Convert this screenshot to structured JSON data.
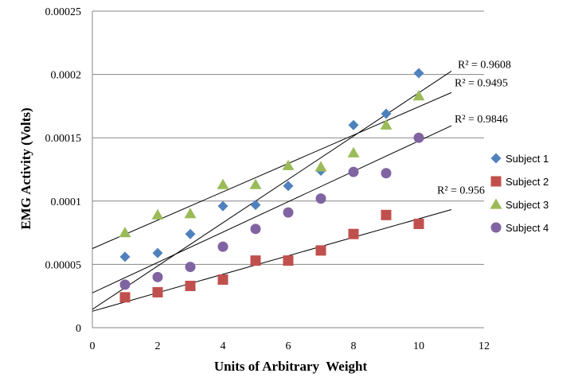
{
  "chart_data": {
    "type": "scatter",
    "title": "",
    "xlabel": "Units of Arbitrary  Weight",
    "ylabel": "EMG Activity (Volts)",
    "xlim": [
      0,
      12
    ],
    "ylim": [
      0,
      0.00025
    ],
    "x_ticks": [
      "0",
      "2",
      "4",
      "6",
      "8",
      "10",
      "12"
    ],
    "y_ticks": [
      "0",
      "0.00005",
      "0.0001",
      "0.00015",
      "0.0002",
      "0.00025"
    ],
    "grid": "horizontal",
    "legend_position": "right",
    "series": [
      {
        "name": "Subject 1",
        "marker": "diamond",
        "color": "#4F81BD",
        "x": [
          1,
          2,
          3,
          4,
          5,
          6,
          7,
          8,
          9,
          10
        ],
        "y": [
          5.6e-05,
          5.9e-05,
          7.4e-05,
          9.6e-05,
          9.7e-05,
          0.000112,
          0.000124,
          0.00016,
          0.000169,
          0.000201
        ],
        "trend": {
          "intercept": 1.45e-05,
          "slope": 1.71e-05,
          "end_x": 11,
          "r2_label": "R² = 0.9608"
        }
      },
      {
        "name": "Subject 2",
        "marker": "square",
        "color": "#C0504D",
        "x": [
          1,
          2,
          3,
          4,
          5,
          6,
          7,
          8,
          9,
          10
        ],
        "y": [
          2.4e-05,
          2.8e-05,
          3.3e-05,
          3.8e-05,
          5.3e-05,
          5.3e-05,
          6.1e-05,
          7.4e-05,
          8.9e-05,
          8.2e-05
        ],
        "trend": {
          "intercept": 1.3e-05,
          "slope": 7.3e-06,
          "end_x": 11,
          "r2_label": "R² = 0.956"
        }
      },
      {
        "name": "Subject 3",
        "marker": "triangle",
        "color": "#9BBB59",
        "x": [
          1,
          2,
          3,
          4,
          5,
          6,
          7,
          8,
          9,
          10
        ],
        "y": [
          7.5e-05,
          8.9e-05,
          9e-05,
          0.000113,
          0.000113,
          0.000128,
          0.000127,
          0.000138,
          0.00016,
          0.000183
        ],
        "trend": {
          "intercept": 6.25e-05,
          "slope": 1.12e-05,
          "end_x": 11,
          "r2_label": "R² = 0.9495"
        }
      },
      {
        "name": "Subject 4",
        "marker": "circle",
        "color": "#8064A2",
        "x": [
          1,
          2,
          3,
          4,
          5,
          6,
          7,
          8,
          9,
          10
        ],
        "y": [
          3.4e-05,
          4e-05,
          4.8e-05,
          6.4e-05,
          7.8e-05,
          9.1e-05,
          0.000102,
          0.000123,
          0.000122,
          0.00015
        ],
        "trend": {
          "intercept": 2.75e-05,
          "slope": 1.2e-05,
          "end_x": 11,
          "r2_label": "R² = 0.9846"
        }
      }
    ]
  }
}
